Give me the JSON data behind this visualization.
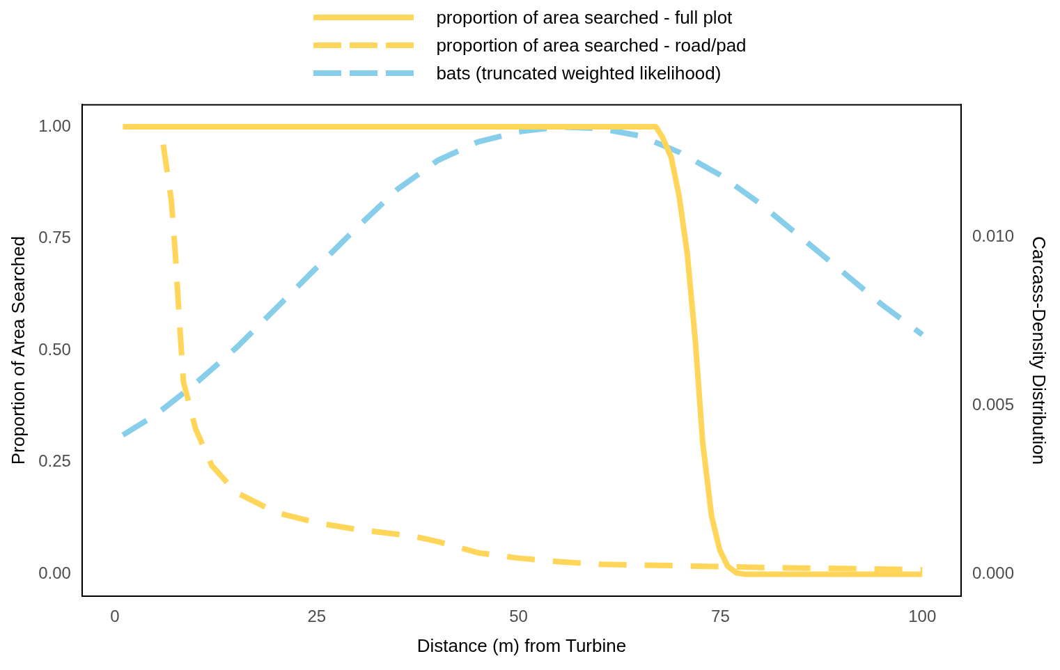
{
  "chart_data": {
    "type": "line",
    "xlabel": "Distance (m) from Turbine",
    "ylabel": "Proportion of Area Searched",
    "y2label": "Carcass-Density Distribution",
    "xlim": [
      -4.05,
      104.8
    ],
    "xticks": [
      0,
      25,
      50,
      75,
      100
    ],
    "ylim": [
      -0.049,
      1.049
    ],
    "yticks": [
      {
        "value": 0,
        "label": "0.00"
      },
      {
        "value": 0.25,
        "label": "0.25"
      },
      {
        "value": 0.5,
        "label": "0.50"
      },
      {
        "value": 0.75,
        "label": "0.75"
      },
      {
        "value": 1,
        "label": "1.00"
      }
    ],
    "y2lim": [
      -0.00066,
      0.01392
    ],
    "y2ticks": [
      {
        "value": 0,
        "label": "0.000"
      },
      {
        "value": 0.005,
        "label": "0.005"
      },
      {
        "value": 0.01,
        "label": "0.010"
      }
    ],
    "grid": false,
    "legend": "top",
    "marker": "none",
    "series": [
      {
        "name": "proportion of area searched - full plot",
        "color": "#ffd55a",
        "line_style": "solid",
        "x": [
          1,
          10,
          20,
          30,
          40,
          50,
          60,
          67,
          67.8,
          68.9,
          69.9,
          70.9,
          71.9,
          72.8,
          73.9,
          74.9,
          75.9,
          77,
          78,
          85,
          90,
          100
        ],
        "values": [
          1,
          1,
          1,
          1,
          1,
          1,
          1,
          1,
          0.977,
          0.932,
          0.843,
          0.715,
          0.52,
          0.295,
          0.13,
          0.055,
          0.018,
          0.003,
          0,
          0,
          0,
          0
        ]
      },
      {
        "name": "proportion of area searched - road/pad",
        "color": "#ffd55a",
        "line_style": "dashed",
        "x": [
          6,
          7,
          7.5,
          8,
          8.5,
          10,
          12,
          15,
          20,
          25,
          30,
          37,
          40,
          45,
          50,
          55,
          60,
          70,
          80,
          90,
          100
        ],
        "values": [
          0.96,
          0.835,
          0.715,
          0.565,
          0.43,
          0.325,
          0.243,
          0.183,
          0.138,
          0.115,
          0.1,
          0.085,
          0.073,
          0.048,
          0.036,
          0.028,
          0.022,
          0.019,
          0.015,
          0.013,
          0.01
        ]
      },
      {
        "name": "bats (truncated weighted likelihood)",
        "color": "#87ceeb",
        "line_style": "dashed",
        "axis": "y2",
        "x": [
          1,
          5,
          10,
          15,
          20,
          25,
          30,
          35,
          40,
          45,
          50,
          55,
          60,
          65,
          70,
          75,
          80,
          85,
          90,
          95,
          100
        ],
        "values": [
          0.00412,
          0.00471,
          0.00565,
          0.0067,
          0.00789,
          0.00909,
          0.01028,
          0.01141,
          0.01227,
          0.01282,
          0.01312,
          0.01326,
          0.01322,
          0.013,
          0.0125,
          0.01183,
          0.01097,
          0.00998,
          0.00899,
          0.00799,
          0.0071
        ]
      }
    ]
  }
}
